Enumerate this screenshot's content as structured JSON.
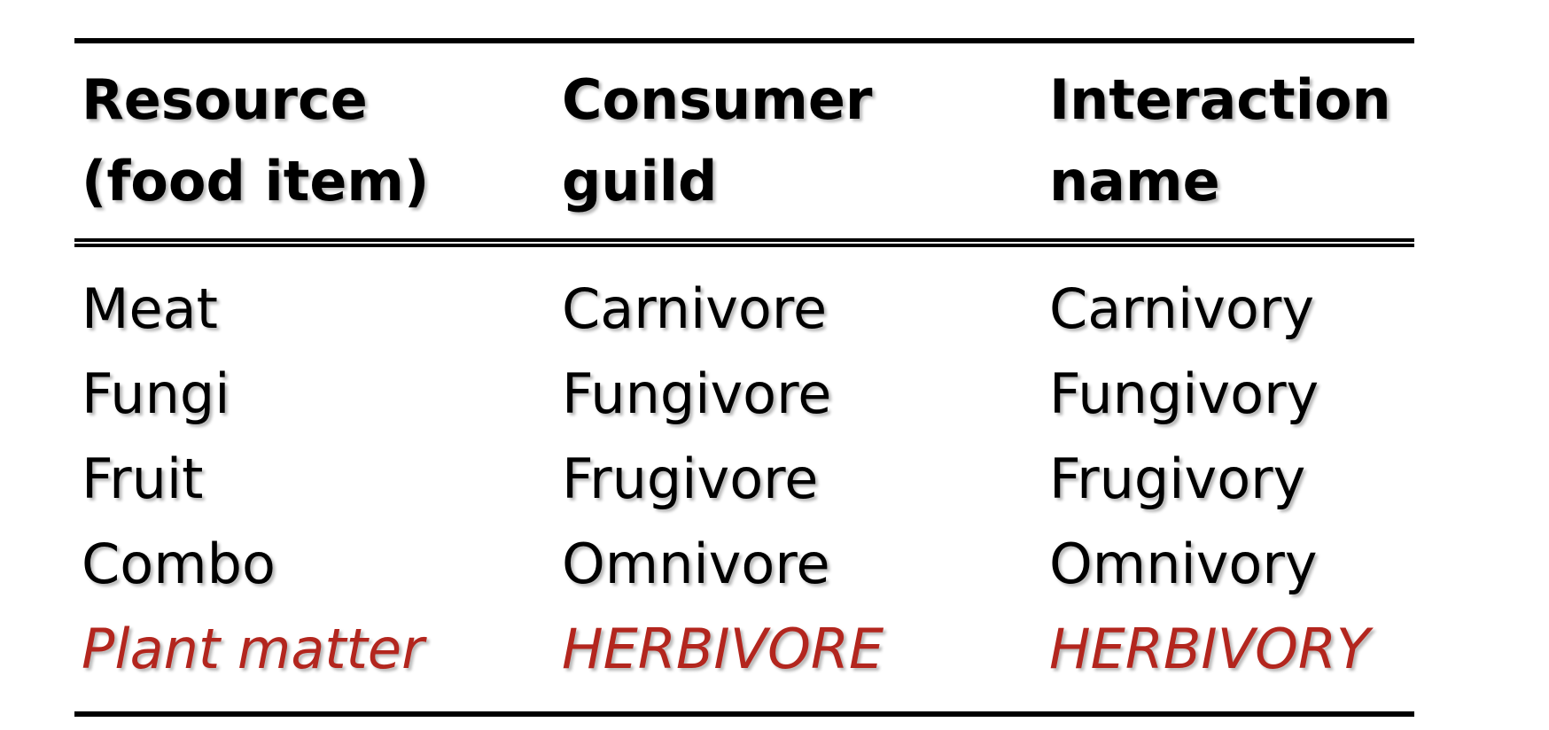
{
  "table": {
    "headers": [
      {
        "line1": "Resource",
        "line2": "(food item)"
      },
      {
        "line1": "Consumer",
        "line2": "guild"
      },
      {
        "line1": "Interaction",
        "line2": "name"
      }
    ],
    "rows": [
      [
        "Meat",
        "Carnivore",
        "Carnivory"
      ],
      [
        "Fungi",
        "Fungivore",
        "Fungivory"
      ],
      [
        "Fruit",
        "Frugivore",
        "Frugivory"
      ],
      [
        "Combo",
        "Omnivore",
        "Omnivory"
      ],
      [
        "Plant matter",
        "HERBIVORE",
        "HERBIVORY"
      ]
    ],
    "highlight_color": "#b3261e"
  }
}
